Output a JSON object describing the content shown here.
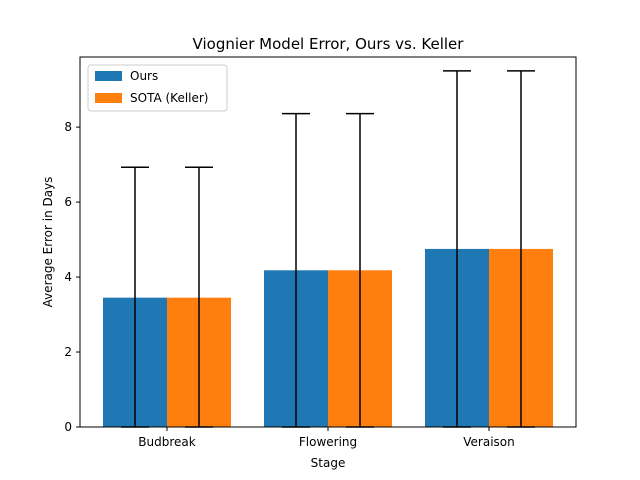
{
  "chart_data": {
    "type": "bar",
    "title": "Viognier Model Error, Ours vs. Keller",
    "xlabel": "Stage",
    "ylabel": "Average Error in Days",
    "categories": [
      "Budbreak",
      "Flowering",
      "Veraison"
    ],
    "series": [
      {
        "name": "Ours",
        "values": [
          3.45,
          4.18,
          4.75
        ],
        "error": [
          3.48,
          4.18,
          4.75
        ],
        "color": "#1f77b4"
      },
      {
        "name": "SOTA (Keller)",
        "values": [
          3.45,
          4.18,
          4.75
        ],
        "error": [
          3.48,
          4.18,
          4.75
        ],
        "color": "#ff7f0e"
      }
    ],
    "ylim": [
      0,
      9.87
    ],
    "yticks": [
      0,
      2,
      4,
      6,
      8
    ],
    "grid": false,
    "legend_position": "top-left"
  }
}
